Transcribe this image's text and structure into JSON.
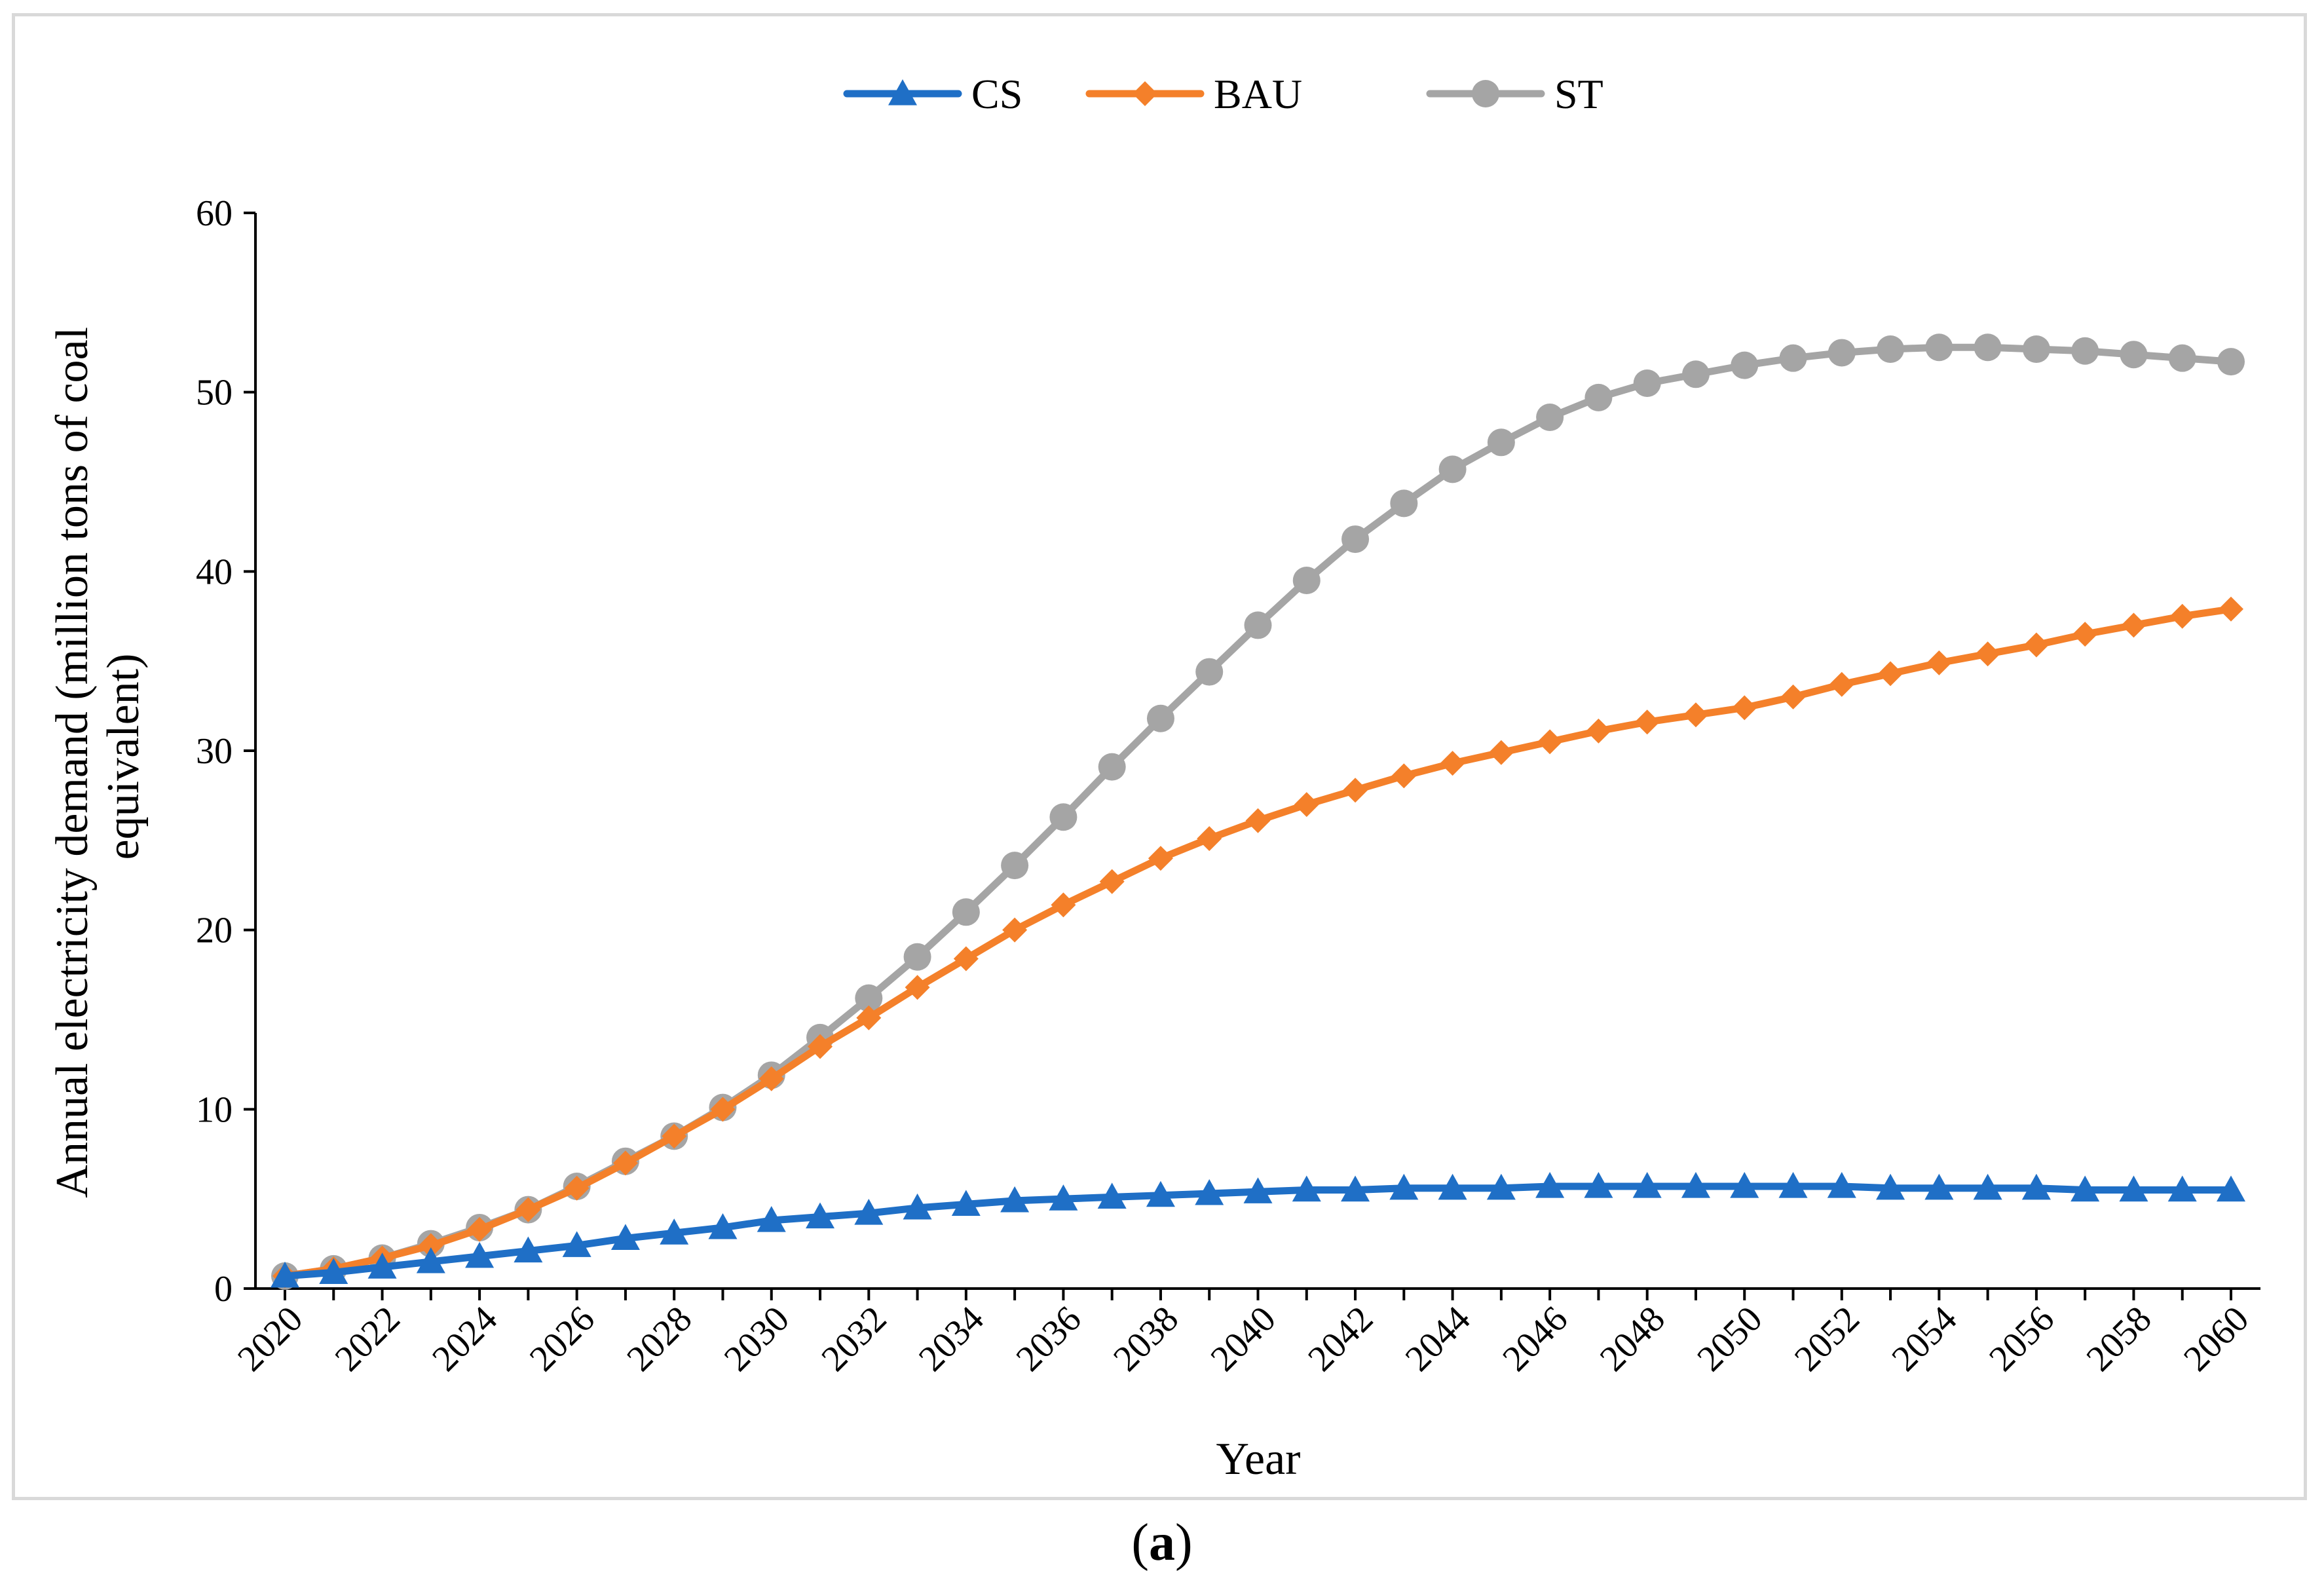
{
  "figure": {
    "label_open": "(",
    "label_letter": "a",
    "label_close": ")"
  },
  "chart_data": {
    "type": "line",
    "title": "",
    "xlabel": "Year",
    "ylabel": "Annual electricity demand (million tons of coal equivalent)",
    "ylabel_line1": "Annual electricity demand (million tons of coal",
    "ylabel_line2": "equivalent)",
    "ylim": [
      0,
      60
    ],
    "yticks": [
      0,
      10,
      20,
      30,
      40,
      50,
      60
    ],
    "xlim": [
      2020,
      2060
    ],
    "xticks": [
      2020,
      2022,
      2024,
      2026,
      2028,
      2030,
      2032,
      2034,
      2036,
      2038,
      2040,
      2042,
      2044,
      2046,
      2048,
      2050,
      2052,
      2054,
      2056,
      2058,
      2060
    ],
    "grid": false,
    "legend_position": "top-center",
    "x": [
      2020,
      2021,
      2022,
      2023,
      2024,
      2025,
      2026,
      2027,
      2028,
      2029,
      2030,
      2031,
      2032,
      2033,
      2034,
      2035,
      2036,
      2037,
      2038,
      2039,
      2040,
      2041,
      2042,
      2043,
      2044,
      2045,
      2046,
      2047,
      2048,
      2049,
      2050,
      2051,
      2052,
      2053,
      2054,
      2055,
      2056,
      2057,
      2058,
      2059,
      2060
    ],
    "series": [
      {
        "name": "CS",
        "color": "#1f6fc6",
        "marker": "triangle",
        "values": [
          0.7,
          0.9,
          1.2,
          1.5,
          1.8,
          2.1,
          2.4,
          2.8,
          3.1,
          3.4,
          3.8,
          4.0,
          4.2,
          4.5,
          4.7,
          4.9,
          5.0,
          5.1,
          5.2,
          5.3,
          5.4,
          5.5,
          5.5,
          5.6,
          5.6,
          5.6,
          5.7,
          5.7,
          5.7,
          5.7,
          5.7,
          5.7,
          5.7,
          5.6,
          5.6,
          5.6,
          5.6,
          5.5,
          5.5,
          5.5,
          5.5
        ]
      },
      {
        "name": "BAU",
        "color": "#f4802a",
        "marker": "diamond",
        "values": [
          0.7,
          1.1,
          1.7,
          2.4,
          3.3,
          4.4,
          5.6,
          7.0,
          8.5,
          10.0,
          11.7,
          13.5,
          15.1,
          16.8,
          18.4,
          20.0,
          21.4,
          22.7,
          24.0,
          25.1,
          26.1,
          27.0,
          27.8,
          28.6,
          29.3,
          29.9,
          30.5,
          31.1,
          31.6,
          32.0,
          32.4,
          33.0,
          33.7,
          34.3,
          34.9,
          35.4,
          35.9,
          36.5,
          37.0,
          37.5,
          37.9
        ]
      },
      {
        "name": "ST",
        "color": "#a5a5a5",
        "marker": "circle",
        "values": [
          0.7,
          1.1,
          1.7,
          2.5,
          3.4,
          4.4,
          5.7,
          7.1,
          8.5,
          10.1,
          11.9,
          14.0,
          16.2,
          18.5,
          21.0,
          23.6,
          26.3,
          29.1,
          31.8,
          34.4,
          37.0,
          39.5,
          41.8,
          43.8,
          45.7,
          47.2,
          48.6,
          49.7,
          50.5,
          51.0,
          51.5,
          51.9,
          52.2,
          52.4,
          52.5,
          52.5,
          52.4,
          52.3,
          52.1,
          51.9,
          51.7
        ]
      }
    ]
  }
}
